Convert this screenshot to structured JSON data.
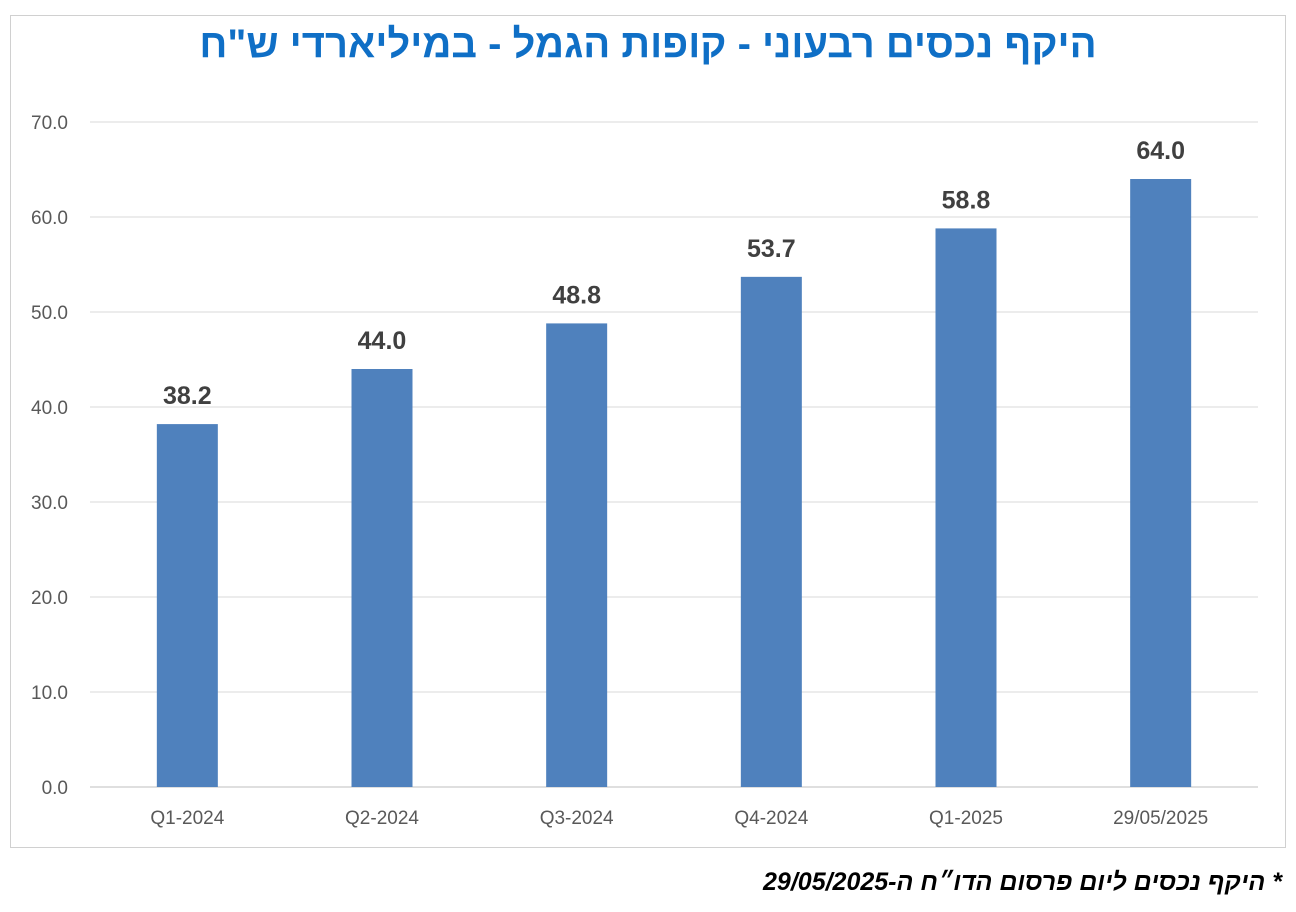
{
  "chart_data": {
    "type": "bar",
    "title": "היקף נכסים רבעוני  - קופות הגמל - במיליארדי ש\"ח",
    "categories": [
      "Q1-2024",
      "Q2-2024",
      "Q3-2024",
      "Q4-2024",
      "Q1-2025",
      "29/05/2025"
    ],
    "values": [
      38.2,
      44.0,
      48.8,
      53.7,
      58.8,
      64.0
    ],
    "data_labels": [
      "38.2",
      "44.0",
      "48.8",
      "53.7",
      "58.8",
      "64.0"
    ],
    "y_ticks": [
      "0.0",
      "10.0",
      "20.0",
      "30.0",
      "40.0",
      "50.0",
      "60.0",
      "70.0"
    ],
    "ylim": [
      0,
      70
    ],
    "xlabel": "",
    "ylabel": "",
    "grid": true,
    "bar_color": "#4f81bd",
    "title_color": "#0f6fc6"
  },
  "footnote": "* היקף נכסים ליום פרסום הדו״ח ה-29/05/2025"
}
